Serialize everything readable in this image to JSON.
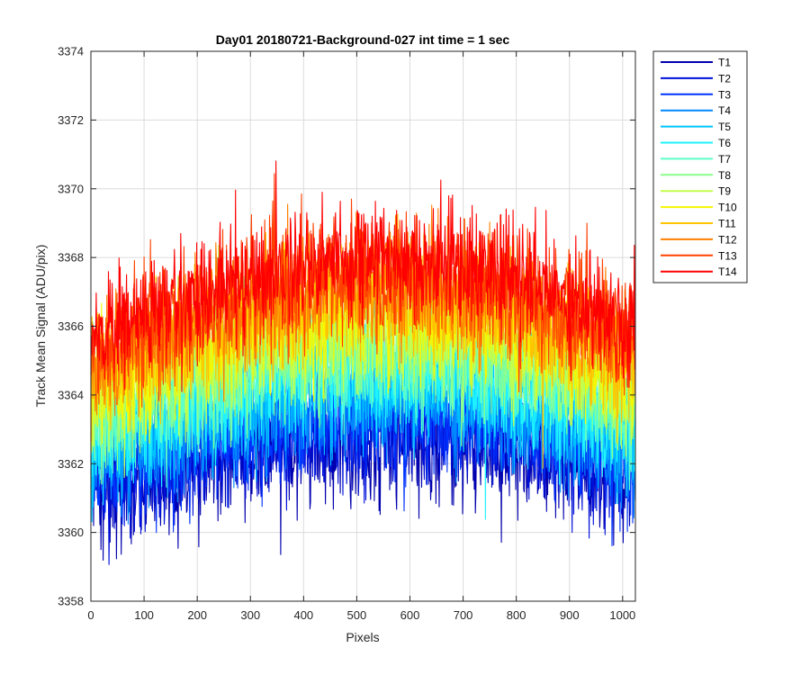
{
  "chart_data": {
    "type": "line",
    "title": "Day01 20180721-Background-027 int time = 1 sec",
    "xlabel": "Pixels",
    "ylabel": "Track Mean Signal (ADU/pix)",
    "xlim": [
      0,
      1024
    ],
    "ylim": [
      3358,
      3374
    ],
    "xticks": [
      0,
      100,
      200,
      300,
      400,
      500,
      600,
      700,
      800,
      900,
      1000
    ],
    "yticks": [
      3358,
      3360,
      3362,
      3364,
      3366,
      3368,
      3370,
      3372,
      3374
    ],
    "xtick_labels": [
      "0",
      "100",
      "200",
      "300",
      "400",
      "500",
      "600",
      "700",
      "800",
      "900",
      "1000"
    ],
    "ytick_labels": [
      "3358",
      "3360",
      "3362",
      "3364",
      "3366",
      "3368",
      "3370",
      "3372",
      "3374"
    ],
    "grid": true,
    "legend_position": "outside-top-right",
    "series_profile": {
      "x": [
        0,
        100,
        200,
        300,
        400,
        500,
        600,
        700,
        800,
        900,
        1024
      ],
      "T1_mean": [
        3361.2,
        3361.4,
        3361.8,
        3362.3,
        3362.6,
        3362.7,
        3362.7,
        3362.6,
        3362.3,
        3361.9,
        3361.3
      ],
      "T14_mean": [
        3365.6,
        3366.3,
        3366.9,
        3367.4,
        3367.8,
        3368.0,
        3368.0,
        3367.8,
        3367.4,
        3366.8,
        3365.9
      ],
      "noise_amplitude": 1.0
    },
    "series": [
      {
        "name": "T1",
        "color": "#0000ae"
      },
      {
        "name": "T2",
        "color": "#0010d9"
      },
      {
        "name": "T3",
        "color": "#0034ff"
      },
      {
        "name": "T4",
        "color": "#0088ff"
      },
      {
        "name": "T5",
        "color": "#00c3ff"
      },
      {
        "name": "T6",
        "color": "#1ef3ff"
      },
      {
        "name": "T7",
        "color": "#5fffc8"
      },
      {
        "name": "T8",
        "color": "#8cff8c"
      },
      {
        "name": "T9",
        "color": "#c3ff4c"
      },
      {
        "name": "T10",
        "color": "#f6f600"
      },
      {
        "name": "T11",
        "color": "#ffc300"
      },
      {
        "name": "T12",
        "color": "#ff8000"
      },
      {
        "name": "T13",
        "color": "#ff4000"
      },
      {
        "name": "T14",
        "color": "#ff0000"
      }
    ]
  }
}
